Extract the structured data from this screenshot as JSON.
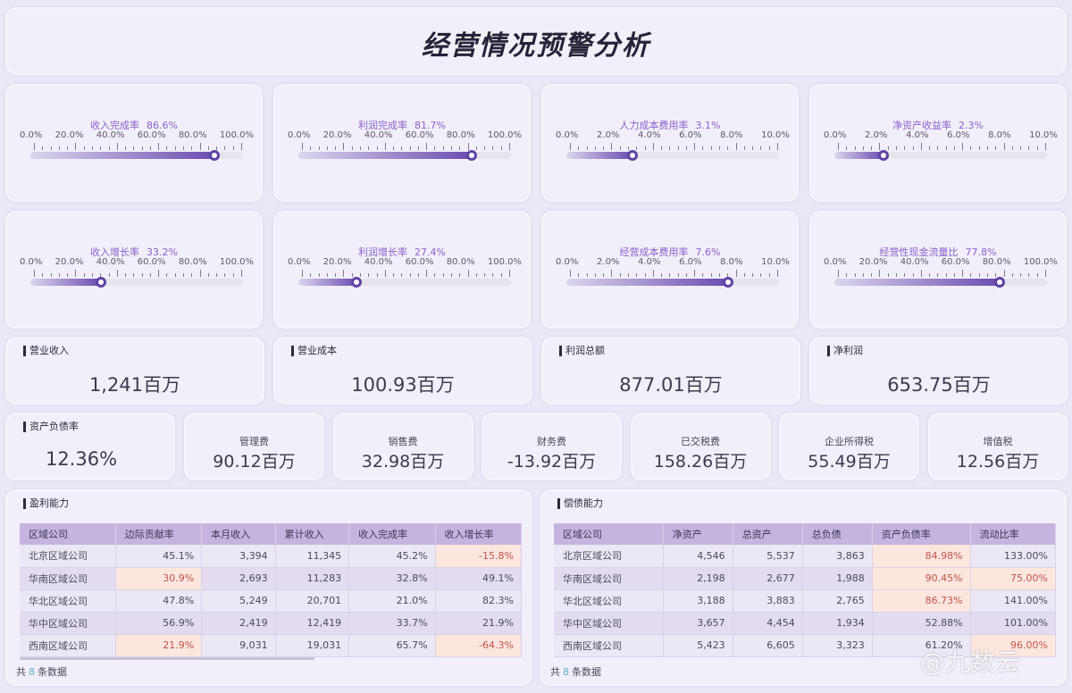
{
  "header": {
    "title": "经营情况预警分析"
  },
  "gauges": [
    {
      "label": "收入完成率",
      "value": "86.6%",
      "pct": 86.6,
      "ticks": [
        "0.0%",
        "20.0%",
        "40.0%",
        "60.0%",
        "80.0%",
        "100.0%"
      ]
    },
    {
      "label": "利润完成率",
      "value": "81.7%",
      "pct": 81.7,
      "ticks": [
        "0.0%",
        "20.0%",
        "40.0%",
        "60.0%",
        "80.0%",
        "100.0%"
      ]
    },
    {
      "label": "人力成本费用率",
      "value": "3.1%",
      "pct": 31,
      "ticks": [
        "0.0%",
        "2.0%",
        "4.0%",
        "6.0%",
        "8.0%",
        "10.0%"
      ]
    },
    {
      "label": "净资产收益率",
      "value": "2.3%",
      "pct": 23,
      "ticks": [
        "0.0%",
        "2.0%",
        "4.0%",
        "6.0%",
        "8.0%",
        "10.0%"
      ]
    },
    {
      "label": "收入增长率",
      "value": "33.2%",
      "pct": 33.2,
      "ticks": [
        "0.0%",
        "20.0%",
        "40.0%",
        "60.0%",
        "80.0%",
        "100.0%"
      ]
    },
    {
      "label": "利润增长率",
      "value": "27.4%",
      "pct": 27.4,
      "ticks": [
        "0.0%",
        "20.0%",
        "40.0%",
        "60.0%",
        "80.0%",
        "100.0%"
      ]
    },
    {
      "label": "经营成本费用率",
      "value": "7.6%",
      "pct": 76,
      "ticks": [
        "0.0%",
        "2.0%",
        "4.0%",
        "6.0%",
        "8.0%",
        "10.0%"
      ]
    },
    {
      "label": "经营性现金流量比",
      "value": "77.8%",
      "pct": 77.8,
      "ticks": [
        "0.0%",
        "20.0%",
        "40.0%",
        "60.0%",
        "80.0%",
        "100.0%"
      ]
    }
  ],
  "kpis": [
    {
      "label": "营业收入",
      "value": "1,241百万"
    },
    {
      "label": "营业成本",
      "value": "100.93百万"
    },
    {
      "label": "利润总额",
      "value": "877.01百万"
    },
    {
      "label": "净利润",
      "value": "653.75百万"
    }
  ],
  "debt_ratio": {
    "label": "资产负债率",
    "value": "12.36%"
  },
  "fees": [
    {
      "label": "管理费",
      "value": "90.12百万"
    },
    {
      "label": "销售费",
      "value": "32.98百万"
    },
    {
      "label": "财务费",
      "value": "-13.92百万"
    },
    {
      "label": "已交税费",
      "value": "158.26百万"
    },
    {
      "label": "企业所得税",
      "value": "55.49百万"
    },
    {
      "label": "增值税",
      "value": "12.56百万"
    }
  ],
  "profit_table": {
    "title": "盈利能力",
    "columns": [
      "区域公司",
      "边际贡献率",
      "本月收入",
      "累计收入",
      "收入完成率",
      "收入增长率"
    ],
    "rows": [
      [
        "北京区域公司",
        "45.1%",
        "3,394",
        "11,345",
        "45.2%",
        "-15.8%"
      ],
      [
        "华南区域公司",
        "30.9%",
        "2,693",
        "11,283",
        "32.8%",
        "49.1%"
      ],
      [
        "华北区域公司",
        "47.8%",
        "5,249",
        "20,701",
        "21.0%",
        "82.3%"
      ],
      [
        "华中区域公司",
        "56.9%",
        "2,419",
        "12,419",
        "33.7%",
        "21.9%"
      ],
      [
        "西南区域公司",
        "21.9%",
        "9,031",
        "19,031",
        "65.7%",
        "-64.3%"
      ]
    ],
    "warn": [
      [
        0,
        5
      ],
      [
        1,
        1
      ],
      [
        4,
        1
      ],
      [
        4,
        5
      ]
    ],
    "footer": {
      "prefix": "共",
      "count": "8",
      "suffix": "条数据"
    }
  },
  "debt_table": {
    "title": "偿债能力",
    "columns": [
      "区域公司",
      "净资产",
      "总资产",
      "总负债",
      "资产负债率",
      "流动比率"
    ],
    "rows": [
      [
        "北京区域公司",
        "4,546",
        "5,537",
        "3,863",
        "84.98%",
        "133.00%"
      ],
      [
        "华南区域公司",
        "2,198",
        "2,677",
        "1,988",
        "90.45%",
        "75.00%"
      ],
      [
        "华北区域公司",
        "3,188",
        "3,883",
        "2,765",
        "86.73%",
        "141.00%"
      ],
      [
        "华中区域公司",
        "3,657",
        "4,454",
        "1,934",
        "52.88%",
        "101.00%"
      ],
      [
        "西南区域公司",
        "5,423",
        "6,605",
        "3,323",
        "61.20%",
        "96.00%"
      ]
    ],
    "warn": [
      [
        0,
        4
      ],
      [
        1,
        4
      ],
      [
        1,
        5
      ],
      [
        2,
        4
      ],
      [
        4,
        5
      ]
    ],
    "footer": {
      "prefix": "共",
      "count": "8",
      "suffix": "条数据"
    }
  },
  "watermark": "@九数云"
}
